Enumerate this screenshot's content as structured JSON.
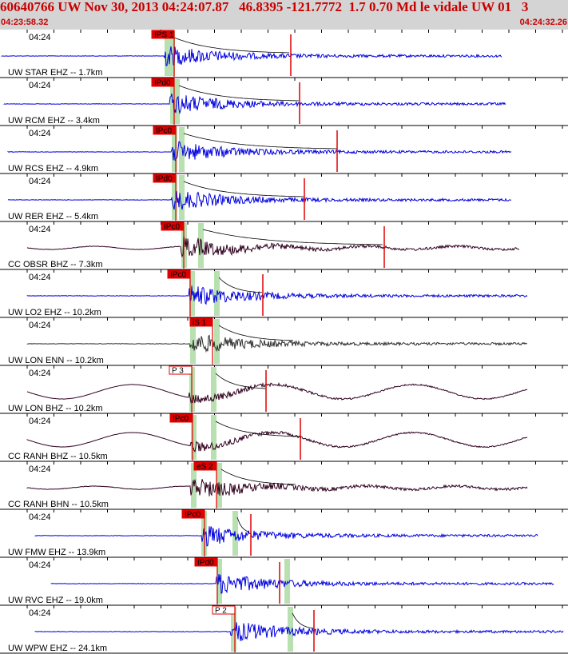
{
  "header": {
    "title": "60640766 UW Nov 30, 2013 04:24:07.87   46.8395 -121.7772  1.7 0.70 Md le vidale UW 01   3",
    "start_time": "04:23:58.32",
    "end_time": "04:24:32.26"
  },
  "colors": {
    "header_bg": "#d4d4d4",
    "header_text": "#c80000",
    "trace_blue": "#0000e0",
    "trace_dark": "#30001e",
    "trace_grey": "#303030",
    "pick_red": "#e00000",
    "window_green": "#b8e0b0",
    "coda_curve": "#000000"
  },
  "chart_data": {
    "type": "seismogram",
    "time_range": [
      "04:23:58.32",
      "04:24:32.26"
    ],
    "tick_label": "04:24",
    "traces": [
      {
        "label": "UW STAR EHZ -- 1.7km",
        "pick": "IPS 1",
        "pick_filled": true,
        "color": "blue",
        "kind": "hf"
      },
      {
        "label": "UW RCM EHZ -- 3.4km",
        "pick": "IPd0",
        "pick_filled": true,
        "color": "blue",
        "kind": "hf"
      },
      {
        "label": "UW RCS EHZ -- 4.9km",
        "pick": "IPc0",
        "pick_filled": true,
        "color": "blue",
        "kind": "hf"
      },
      {
        "label": "UW RER EHZ -- 5.4km",
        "pick": "IPd0",
        "pick_filled": true,
        "color": "blue",
        "kind": "hf"
      },
      {
        "label": "CC OBSR BHZ -- 7.3km",
        "pick": "IPc0",
        "pick_filled": true,
        "color": "dark",
        "kind": "mix"
      },
      {
        "label": "UW LO2 EHZ -- 10.2km",
        "pick": "IPc0",
        "pick_filled": true,
        "color": "blue",
        "kind": "hf"
      },
      {
        "label": "UW LON ENN -- 10.2km",
        "pick": "iS 1",
        "pick_filled": true,
        "color": "grey",
        "kind": "hf"
      },
      {
        "label": "UW LON BHZ -- 10.2km",
        "pick": "P 3",
        "pick_filled": false,
        "color": "dark",
        "kind": "lf"
      },
      {
        "label": "CC RANH BHZ -- 10.5km",
        "pick": "IPc0",
        "pick_filled": true,
        "color": "dark",
        "kind": "lf"
      },
      {
        "label": "CC RANH BHN -- 10.5km",
        "pick": "eS 2",
        "pick_filled": true,
        "color": "dark",
        "kind": "mix"
      },
      {
        "label": "UW FMW EHZ -- 13.9km",
        "pick": "IPc0",
        "pick_filled": true,
        "color": "blue",
        "kind": "hf"
      },
      {
        "label": "UW RVC EHZ -- 19.0km",
        "pick": "IPd0",
        "pick_filled": true,
        "color": "blue",
        "kind": "hf"
      },
      {
        "label": "UW WPW EHZ -- 24.1km",
        "pick": "P 2",
        "pick_filled": false,
        "color": "blue",
        "kind": "hf"
      }
    ]
  }
}
